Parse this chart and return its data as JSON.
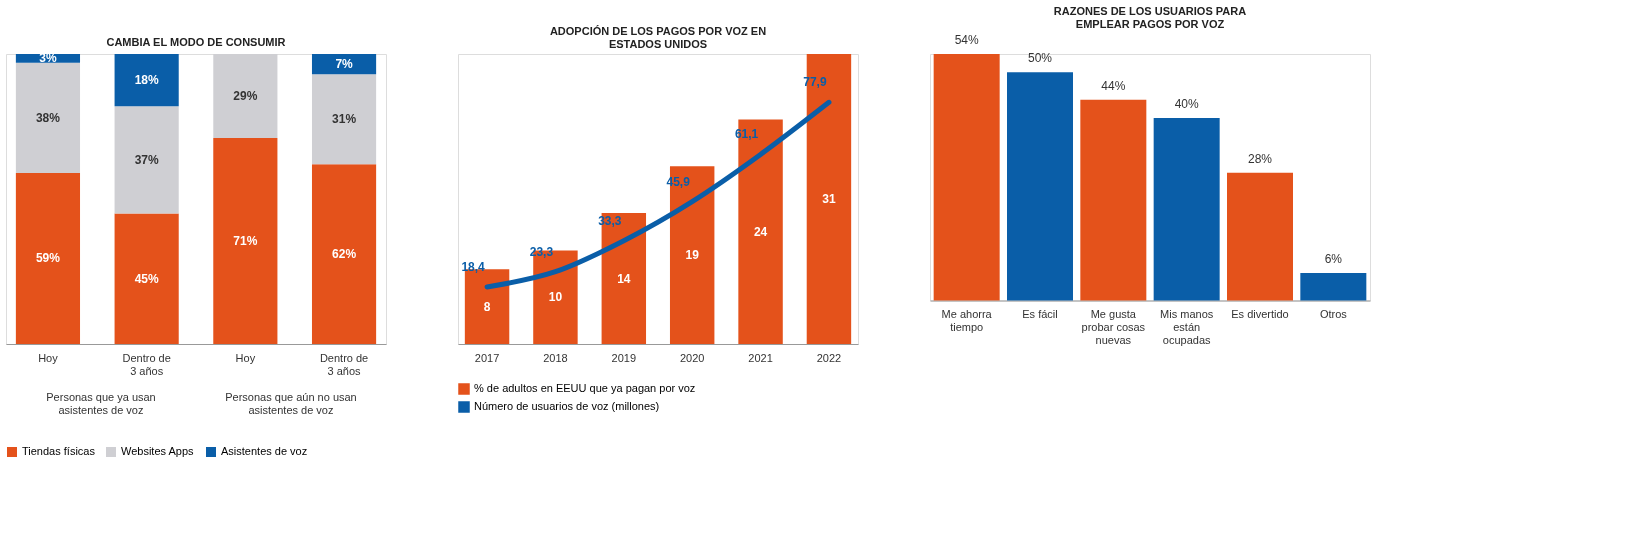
{
  "chart_data": [
    {
      "type": "bar",
      "title": "CAMBIA EL MODO DE CONSUMIR",
      "categories": [
        "Hoy",
        "Dentro de 3 años",
        "Hoy",
        "Dentro de 3 años"
      ],
      "stacked": true,
      "legend": "bottom",
      "series": [
        {
          "name": "Tiendas físicas",
          "color": "#e4521b",
          "values": [
            59,
            45,
            71,
            62
          ],
          "value_labels": [
            "59%",
            "45%",
            "71%",
            "62%"
          ]
        },
        {
          "name": "Websites Apps",
          "color": "#cfcfd3",
          "values": [
            38,
            37,
            29,
            31
          ],
          "value_labels": [
            "38%",
            "37%",
            "29%",
            "31%"
          ]
        },
        {
          "name": "Asistentes de voz",
          "color": "#0a5ea8",
          "values": [
            3,
            18,
            null,
            7
          ],
          "value_labels": [
            "3%",
            "18%",
            null,
            "7%"
          ]
        }
      ],
      "annotations": [
        "Personas que ya usan asistentes de voz",
        "Personas que aún no usan asistentes de voz"
      ]
    },
    {
      "type": "bar",
      "title": "ADOPCIÓN DE LOS PAGOS POR VOZ EN ESTADOS UNIDOS",
      "categories": [
        "2017",
        "2018",
        "2019",
        "2020",
        "2021",
        "2022"
      ],
      "legend": "bottom",
      "series": [
        {
          "name": "% de adultos en EEUU que ya pagan por voz",
          "color": "#e4521b",
          "values": [
            8,
            10,
            14,
            19,
            24,
            31
          ],
          "value_labels": [
            "8",
            "10",
            "14",
            "19",
            "24",
            "31"
          ]
        },
        {
          "name": "Número de usuarios de voz (millones)",
          "type": "line",
          "axis": "y2",
          "color": "#0a5ea8",
          "values": [
            18.4,
            23.3,
            33.3,
            45.9,
            61.1,
            77.9
          ],
          "value_labels": [
            "18,4",
            "23,3",
            "33,3",
            "45,9",
            "61,1",
            "77,9"
          ]
        }
      ]
    },
    {
      "type": "bar",
      "title": "RAZONES DE LOS USUARIOS PARA EMPLEAR PAGOS POR VOZ",
      "categories": [
        "Me ahorra tiempo",
        "Es fácil",
        "Me gusta probar cosas nuevas",
        "Mis manos están ocupadas",
        "Es divertido",
        "Otros"
      ],
      "values": [
        54,
        50,
        44,
        40,
        28,
        6
      ],
      "colors": [
        "#e4521b",
        "#0a5ea8",
        "#e4521b",
        "#0a5ea8",
        "#e4521b",
        "#0a5ea8"
      ],
      "value_labels": [
        "54%",
        "50%",
        "44%",
        "40%",
        "28%",
        "6%"
      ]
    }
  ]
}
